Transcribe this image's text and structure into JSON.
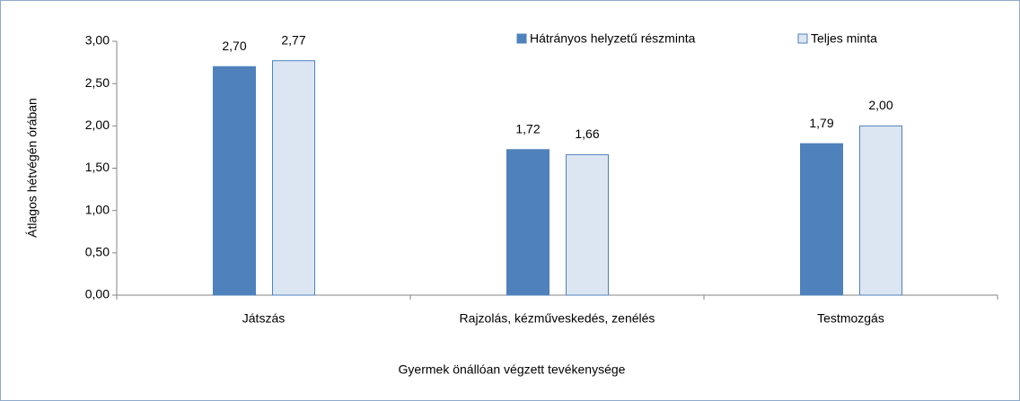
{
  "chart_data": {
    "type": "bar",
    "y_label": "Átlagos hétvégén órában",
    "x_label": "Gyermek önállóan végzett tevékenysége",
    "categories": [
      "Játszás",
      "Rajzolás, kézműveskedés, zenélés",
      "Testmozgás"
    ],
    "series": [
      {
        "name": "Hátrányos helyzetű részminta",
        "color": "#4f81bd",
        "values": [
          2.7,
          1.72,
          1.79
        ],
        "value_labels": [
          "2,70",
          "1,72",
          "1,79"
        ]
      },
      {
        "name": "Teljes minta",
        "color": "#dce6f2",
        "values": [
          2.77,
          1.66,
          2.0
        ],
        "value_labels": [
          "2,77",
          "1,66",
          "2,00"
        ]
      }
    ],
    "ylim": [
      0,
      3
    ],
    "yticks": [
      {
        "value": 0,
        "label": "0,00"
      },
      {
        "value": 0.5,
        "label": "0,50"
      },
      {
        "value": 1,
        "label": "1,00"
      },
      {
        "value": 1.5,
        "label": "1,50"
      },
      {
        "value": 2,
        "label": "2,00"
      },
      {
        "value": 2.5,
        "label": "2,50"
      },
      {
        "value": 3,
        "label": "3,00"
      }
    ],
    "legend": "top-right"
  }
}
